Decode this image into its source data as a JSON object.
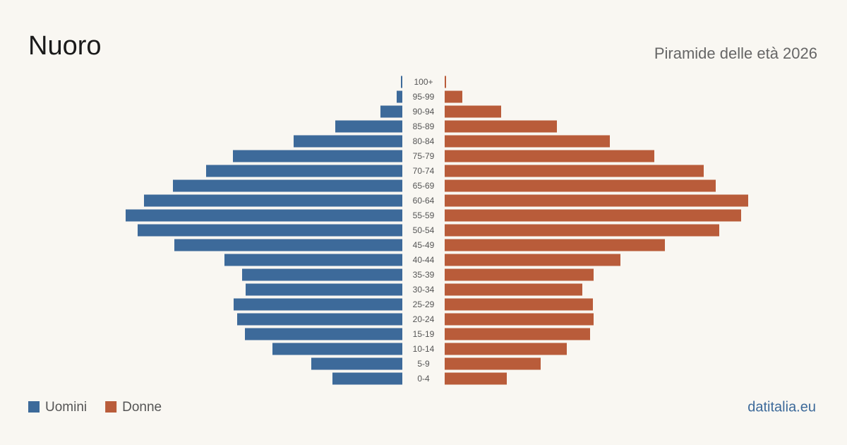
{
  "chart_data": {
    "type": "pyramid",
    "title": "Nuoro",
    "subtitle": "Piramide delle età 2026",
    "source": "datitalia.eu",
    "categories": [
      "100+",
      "95-99",
      "90-94",
      "85-89",
      "80-84",
      "75-79",
      "70-74",
      "65-69",
      "60-64",
      "55-59",
      "50-54",
      "45-49",
      "40-44",
      "35-39",
      "30-34",
      "25-29",
      "20-24",
      "15-19",
      "10-14",
      "5-9",
      "0-4"
    ],
    "series": [
      {
        "name": "Uomini",
        "color": "#3d6a9a",
        "values": [
          6,
          24,
          93,
          285,
          462,
          720,
          834,
          975,
          1098,
          1176,
          1125,
          969,
          756,
          681,
          666,
          717,
          702,
          669,
          552,
          387,
          297
        ]
      },
      {
        "name": "Donne",
        "color": "#b95c3a",
        "values": [
          6,
          75,
          240,
          477,
          702,
          891,
          1101,
          1152,
          1290,
          1260,
          1167,
          936,
          747,
          633,
          585,
          630,
          633,
          618,
          519,
          408,
          264
        ]
      }
    ]
  }
}
